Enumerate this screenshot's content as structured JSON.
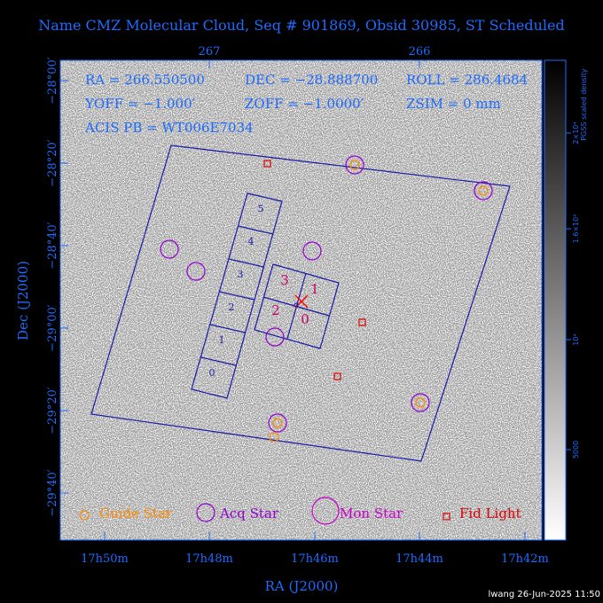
{
  "title": "Name CMZ Molecular Cloud, Seq # 901869, Obsid 30985, ST Scheduled",
  "params": {
    "ra": "RA = 266.550500",
    "dec": "DEC = −28.888700",
    "roll": "ROLL = 286.4684",
    "yoff": "YOFF = −1.000′",
    "zoff": "ZOFF = −1.0000′",
    "zsim": "ZSIM = 0 mm",
    "acis": "ACIS PB = WT006E7034"
  },
  "axes": {
    "x_label": "RA (J2000)",
    "y_label": "Dec (J2000)",
    "ra_ticks": [
      "17h50m",
      "17h48m",
      "17h46m",
      "17h44m",
      "17h42m"
    ],
    "top_ticks": [
      "267",
      "266"
    ],
    "dec_ticks": [
      "−28°00′",
      "−28°20′",
      "−28°40′",
      "−29°00′",
      "−29°20′",
      "−29°40′"
    ]
  },
  "colorbar": {
    "title": "PGSS scaled density",
    "ticks": [
      "2×10⁴",
      "1.6×10⁴",
      "10⁴",
      "5000"
    ]
  },
  "chips": {
    "acis_s": [
      "0",
      "1",
      "2",
      "3",
      "4",
      "5"
    ],
    "acis_i": [
      "0",
      "1",
      "2",
      "3"
    ]
  },
  "legend": {
    "guide_star": "Guide Star",
    "acq_star": "Acq Star",
    "mon_star": "Mon Star",
    "fid_light": "Fid Light"
  },
  "colors": {
    "accent": "#1e6bff",
    "guide": "#ff8c00",
    "acq": "#9400d3",
    "mon": "#cc00cc",
    "fid": "#dd0000",
    "aim": "#ff0000"
  },
  "footer": "lwang 26-Jun-2025 11:50"
}
